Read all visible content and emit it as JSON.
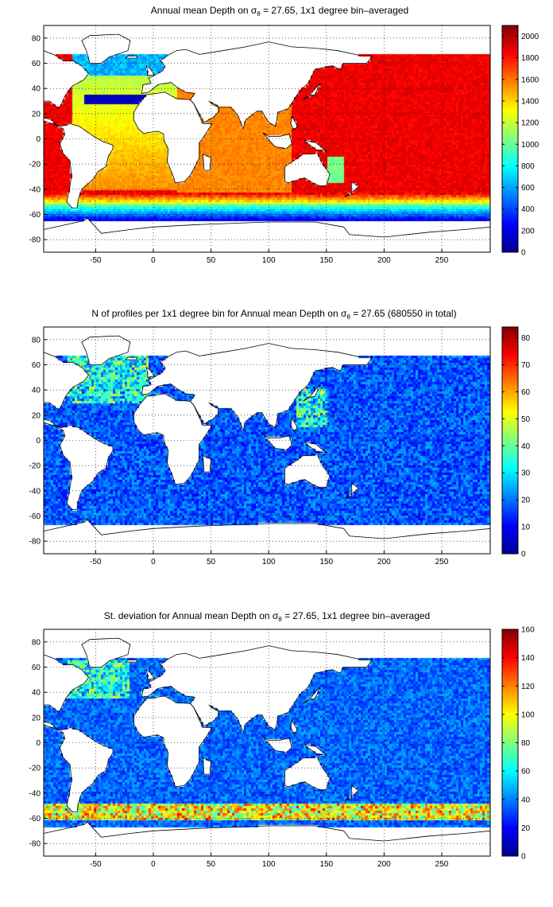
{
  "palette": [
    "#00008f",
    "#0000ff",
    "#0080ff",
    "#00ffff",
    "#80ff80",
    "#ffff00",
    "#ff8000",
    "#ff0000",
    "#800000"
  ],
  "land_color": "#ffffff",
  "coast_color": "#000000",
  "chart_data": [
    {
      "type": "heatmap",
      "title_main": "Annual mean Depth on ",
      "title_sigma": "σ",
      "title_sub": "θ",
      "title_rest": " = 27.65, 1x1 degree bin–averaged",
      "xlim": [
        -95,
        292
      ],
      "ylim": [
        -90,
        90
      ],
      "xticks": [
        -50,
        0,
        50,
        100,
        150,
        200,
        250
      ],
      "yticks": [
        -80,
        -60,
        -40,
        -20,
        0,
        20,
        40,
        60,
        80
      ],
      "clim": [
        0,
        2100
      ],
      "cticks": [
        0,
        200,
        400,
        600,
        800,
        1000,
        1200,
        1400,
        1600,
        1800,
        2000
      ],
      "grid": true,
      "field": "depth"
    },
    {
      "type": "heatmap",
      "title_main": "N of profiles per 1x1 degree bin for Annual mean Depth on ",
      "title_sigma": "σ",
      "title_sub": "θ",
      "title_rest": " = 27.65 (680550 in total)",
      "xlim": [
        -95,
        292
      ],
      "ylim": [
        -90,
        90
      ],
      "xticks": [
        -50,
        0,
        50,
        100,
        150,
        200,
        250
      ],
      "yticks": [
        -80,
        -60,
        -40,
        -20,
        0,
        20,
        40,
        60,
        80
      ],
      "clim": [
        0,
        84
      ],
      "cticks": [
        0,
        10,
        20,
        30,
        40,
        50,
        60,
        70,
        80
      ],
      "grid": true,
      "field": "count"
    },
    {
      "type": "heatmap",
      "title_main": "St. deviation for Annual mean Depth on ",
      "title_sigma": "σ",
      "title_sub": "θ",
      "title_rest": " = 27.65, 1x1 degree bin–averaged",
      "xlim": [
        -95,
        292
      ],
      "ylim": [
        -90,
        90
      ],
      "xticks": [
        -50,
        0,
        50,
        100,
        150,
        200,
        250
      ],
      "yticks": [
        -80,
        -60,
        -40,
        -20,
        0,
        20,
        40,
        60,
        80
      ],
      "clim": [
        0,
        160
      ],
      "cticks": [
        0,
        20,
        40,
        60,
        80,
        100,
        120,
        140,
        160
      ],
      "grid": true,
      "field": "stdev"
    }
  ]
}
